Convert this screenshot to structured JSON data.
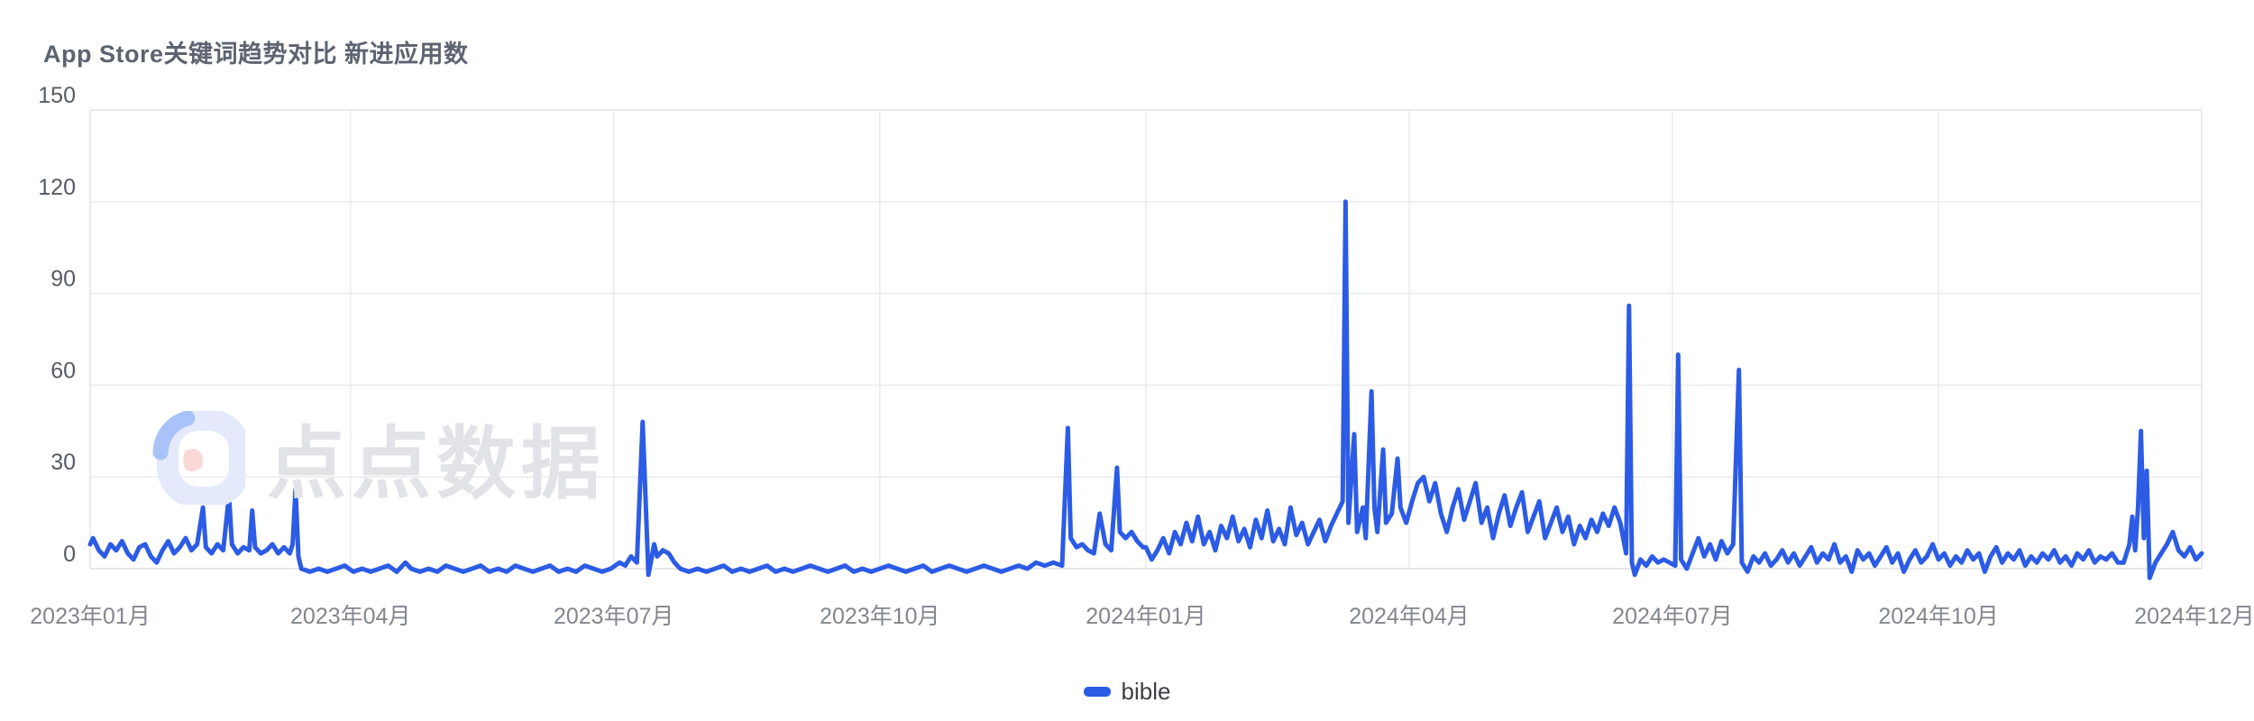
{
  "header": {
    "title": "App Store关键词趋势对比 新进应用数"
  },
  "watermark": {
    "text": "点点数据",
    "logo": "diandian-logo"
  },
  "legend": {
    "items": [
      {
        "label": "bible",
        "color": "#2c5ce5"
      }
    ]
  },
  "colors": {
    "line": "#2c5ce5",
    "grid": "#e9ebee",
    "plot_border": "#e3e5ea",
    "y_label": "#565b63",
    "x_label": "#82868e",
    "title": "#5d6370",
    "watermark_text": "#e2e3e6",
    "logo_ring": "#e4eafb",
    "logo_accent": "#a9c2f7",
    "logo_dot": "#f9d8d6"
  },
  "chart_data": {
    "type": "line",
    "title": "App Store关键词趋势对比 新进应用数",
    "legend_position": "bottom-center",
    "grid": true,
    "series_name": "bible",
    "x_axis": {
      "start_date": "2023-01-01",
      "end_date": "2024-12-31",
      "total_days": 730,
      "ticks": [
        {
          "label": "2023年01月",
          "day": 0
        },
        {
          "label": "2023年04月",
          "day": 90
        },
        {
          "label": "2023年07月",
          "day": 181
        },
        {
          "label": "2023年10月",
          "day": 273
        },
        {
          "label": "2024年01月",
          "day": 365
        },
        {
          "label": "2024年04月",
          "day": 456
        },
        {
          "label": "2024年07月",
          "day": 547
        },
        {
          "label": "2024年10月",
          "day": 639
        },
        {
          "label": "2024年12月",
          "day": 730
        }
      ]
    },
    "y_axis": {
      "min": 0,
      "max": 150,
      "tick_values": [
        0,
        30,
        60,
        90,
        120,
        150
      ],
      "tick_labels": [
        "0",
        "30",
        "60",
        "90",
        "120",
        "150"
      ]
    },
    "notable_peaks": [
      {
        "date": "2023-03-13",
        "value": 26
      },
      {
        "date": "2023-07-11",
        "value": 48
      },
      {
        "date": "2023-12-05",
        "value": 46
      },
      {
        "date": "2023-12-22",
        "value": 33
      },
      {
        "date": "2024-03-10",
        "value": 120
      },
      {
        "date": "2024-03-19",
        "value": 58
      },
      {
        "date": "2024-06-16",
        "value": 86
      },
      {
        "date": "2024-07-03",
        "value": 70
      },
      {
        "date": "2024-07-23",
        "value": 65
      },
      {
        "date": "2024-12-09",
        "value": 45
      },
      {
        "date": "2024-12-11",
        "value": 32
      }
    ],
    "points": [
      [
        0,
        8
      ],
      [
        1,
        10
      ],
      [
        3,
        6
      ],
      [
        5,
        4
      ],
      [
        7,
        8
      ],
      [
        9,
        6
      ],
      [
        11,
        9
      ],
      [
        13,
        5
      ],
      [
        15,
        3
      ],
      [
        17,
        7
      ],
      [
        19,
        8
      ],
      [
        21,
        4
      ],
      [
        23,
        2
      ],
      [
        25,
        6
      ],
      [
        27,
        9
      ],
      [
        29,
        5
      ],
      [
        31,
        7
      ],
      [
        33,
        10
      ],
      [
        35,
        6
      ],
      [
        37,
        8
      ],
      [
        39,
        20
      ],
      [
        40,
        7
      ],
      [
        42,
        5
      ],
      [
        44,
        8
      ],
      [
        46,
        6
      ],
      [
        48,
        24
      ],
      [
        49,
        8
      ],
      [
        51,
        5
      ],
      [
        53,
        7
      ],
      [
        55,
        6
      ],
      [
        56,
        19
      ],
      [
        57,
        7
      ],
      [
        59,
        5
      ],
      [
        61,
        6
      ],
      [
        63,
        8
      ],
      [
        65,
        5
      ],
      [
        67,
        7
      ],
      [
        69,
        5
      ],
      [
        70,
        8
      ],
      [
        71,
        26
      ],
      [
        72,
        4
      ],
      [
        73,
        0
      ],
      [
        76,
        -1
      ],
      [
        79,
        0
      ],
      [
        82,
        -1
      ],
      [
        85,
        0
      ],
      [
        88,
        1
      ],
      [
        91,
        -1
      ],
      [
        94,
        0
      ],
      [
        97,
        -1
      ],
      [
        100,
        0
      ],
      [
        103,
        1
      ],
      [
        106,
        -1
      ],
      [
        109,
        2
      ],
      [
        111,
        0
      ],
      [
        114,
        -1
      ],
      [
        117,
        0
      ],
      [
        120,
        -1
      ],
      [
        123,
        1
      ],
      [
        126,
        0
      ],
      [
        129,
        -1
      ],
      [
        132,
        0
      ],
      [
        135,
        1
      ],
      [
        138,
        -1
      ],
      [
        141,
        0
      ],
      [
        144,
        -1
      ],
      [
        147,
        1
      ],
      [
        150,
        0
      ],
      [
        153,
        -1
      ],
      [
        156,
        0
      ],
      [
        159,
        1
      ],
      [
        162,
        -1
      ],
      [
        165,
        0
      ],
      [
        168,
        -1
      ],
      [
        171,
        1
      ],
      [
        174,
        0
      ],
      [
        177,
        -1
      ],
      [
        180,
        0
      ],
      [
        183,
        2
      ],
      [
        185,
        1
      ],
      [
        187,
        4
      ],
      [
        189,
        2
      ],
      [
        191,
        48
      ],
      [
        193,
        -2
      ],
      [
        195,
        8
      ],
      [
        196,
        4
      ],
      [
        198,
        6
      ],
      [
        200,
        5
      ],
      [
        202,
        2
      ],
      [
        204,
        0
      ],
      [
        207,
        -1
      ],
      [
        210,
        0
      ],
      [
        213,
        -1
      ],
      [
        216,
        0
      ],
      [
        219,
        1
      ],
      [
        222,
        -1
      ],
      [
        225,
        0
      ],
      [
        228,
        -1
      ],
      [
        231,
        0
      ],
      [
        234,
        1
      ],
      [
        237,
        -1
      ],
      [
        240,
        0
      ],
      [
        243,
        -1
      ],
      [
        246,
        0
      ],
      [
        249,
        1
      ],
      [
        252,
        0
      ],
      [
        255,
        -1
      ],
      [
        258,
        0
      ],
      [
        261,
        1
      ],
      [
        264,
        -1
      ],
      [
        267,
        0
      ],
      [
        270,
        -1
      ],
      [
        273,
        0
      ],
      [
        276,
        1
      ],
      [
        279,
        0
      ],
      [
        282,
        -1
      ],
      [
        285,
        0
      ],
      [
        288,
        1
      ],
      [
        291,
        -1
      ],
      [
        294,
        0
      ],
      [
        297,
        1
      ],
      [
        300,
        0
      ],
      [
        303,
        -1
      ],
      [
        306,
        0
      ],
      [
        309,
        1
      ],
      [
        312,
        0
      ],
      [
        315,
        -1
      ],
      [
        318,
        0
      ],
      [
        321,
        1
      ],
      [
        324,
        0
      ],
      [
        327,
        2
      ],
      [
        330,
        1
      ],
      [
        333,
        2
      ],
      [
        336,
        1
      ],
      [
        338,
        46
      ],
      [
        339,
        10
      ],
      [
        341,
        7
      ],
      [
        343,
        8
      ],
      [
        345,
        6
      ],
      [
        347,
        5
      ],
      [
        349,
        18
      ],
      [
        351,
        8
      ],
      [
        353,
        6
      ],
      [
        355,
        33
      ],
      [
        356,
        12
      ],
      [
        358,
        10
      ],
      [
        360,
        12
      ],
      [
        362,
        9
      ],
      [
        364,
        7
      ],
      [
        365,
        7
      ],
      [
        367,
        3
      ],
      [
        369,
        6
      ],
      [
        371,
        10
      ],
      [
        373,
        5
      ],
      [
        375,
        12
      ],
      [
        377,
        8
      ],
      [
        379,
        15
      ],
      [
        381,
        9
      ],
      [
        383,
        17
      ],
      [
        385,
        8
      ],
      [
        387,
        12
      ],
      [
        389,
        6
      ],
      [
        391,
        14
      ],
      [
        393,
        10
      ],
      [
        395,
        17
      ],
      [
        397,
        9
      ],
      [
        399,
        13
      ],
      [
        401,
        7
      ],
      [
        403,
        16
      ],
      [
        405,
        10
      ],
      [
        407,
        19
      ],
      [
        409,
        9
      ],
      [
        411,
        13
      ],
      [
        413,
        8
      ],
      [
        415,
        20
      ],
      [
        417,
        11
      ],
      [
        419,
        15
      ],
      [
        421,
        8
      ],
      [
        423,
        12
      ],
      [
        425,
        16
      ],
      [
        427,
        9
      ],
      [
        429,
        14
      ],
      [
        431,
        18
      ],
      [
        433,
        22
      ],
      [
        434,
        120
      ],
      [
        435,
        15
      ],
      [
        437,
        44
      ],
      [
        438,
        12
      ],
      [
        440,
        20
      ],
      [
        441,
        10
      ],
      [
        443,
        58
      ],
      [
        444,
        20
      ],
      [
        445,
        12
      ],
      [
        447,
        39
      ],
      [
        448,
        15
      ],
      [
        450,
        18
      ],
      [
        452,
        36
      ],
      [
        453,
        20
      ],
      [
        455,
        15
      ],
      [
        457,
        22
      ],
      [
        459,
        28
      ],
      [
        461,
        30
      ],
      [
        463,
        22
      ],
      [
        465,
        28
      ],
      [
        467,
        18
      ],
      [
        469,
        12
      ],
      [
        471,
        20
      ],
      [
        473,
        26
      ],
      [
        475,
        16
      ],
      [
        477,
        22
      ],
      [
        479,
        28
      ],
      [
        481,
        15
      ],
      [
        483,
        20
      ],
      [
        485,
        10
      ],
      [
        487,
        18
      ],
      [
        489,
        24
      ],
      [
        491,
        14
      ],
      [
        493,
        20
      ],
      [
        495,
        25
      ],
      [
        497,
        12
      ],
      [
        499,
        17
      ],
      [
        501,
        22
      ],
      [
        503,
        10
      ],
      [
        505,
        15
      ],
      [
        507,
        20
      ],
      [
        509,
        12
      ],
      [
        511,
        17
      ],
      [
        513,
        8
      ],
      [
        515,
        14
      ],
      [
        517,
        10
      ],
      [
        519,
        16
      ],
      [
        521,
        12
      ],
      [
        523,
        18
      ],
      [
        525,
        14
      ],
      [
        527,
        20
      ],
      [
        529,
        15
      ],
      [
        531,
        5
      ],
      [
        532,
        86
      ],
      [
        533,
        2
      ],
      [
        534,
        -2
      ],
      [
        536,
        3
      ],
      [
        538,
        1
      ],
      [
        540,
        4
      ],
      [
        542,
        2
      ],
      [
        544,
        3
      ],
      [
        546,
        2
      ],
      [
        548,
        1
      ],
      [
        549,
        70
      ],
      [
        550,
        3
      ],
      [
        552,
        0
      ],
      [
        554,
        5
      ],
      [
        556,
        10
      ],
      [
        558,
        4
      ],
      [
        560,
        8
      ],
      [
        562,
        3
      ],
      [
        564,
        9
      ],
      [
        566,
        5
      ],
      [
        568,
        8
      ],
      [
        570,
        65
      ],
      [
        571,
        2
      ],
      [
        573,
        -1
      ],
      [
        575,
        4
      ],
      [
        577,
        2
      ],
      [
        579,
        5
      ],
      [
        581,
        1
      ],
      [
        583,
        3
      ],
      [
        585,
        6
      ],
      [
        587,
        2
      ],
      [
        589,
        5
      ],
      [
        591,
        1
      ],
      [
        593,
        4
      ],
      [
        595,
        7
      ],
      [
        597,
        2
      ],
      [
        599,
        5
      ],
      [
        601,
        3
      ],
      [
        603,
        8
      ],
      [
        605,
        2
      ],
      [
        607,
        4
      ],
      [
        609,
        -1
      ],
      [
        611,
        6
      ],
      [
        613,
        3
      ],
      [
        615,
        5
      ],
      [
        617,
        1
      ],
      [
        619,
        4
      ],
      [
        621,
        7
      ],
      [
        623,
        2
      ],
      [
        625,
        5
      ],
      [
        627,
        -1
      ],
      [
        629,
        3
      ],
      [
        631,
        6
      ],
      [
        633,
        2
      ],
      [
        635,
        4
      ],
      [
        637,
        8
      ],
      [
        639,
        3
      ],
      [
        641,
        5
      ],
      [
        643,
        1
      ],
      [
        645,
        4
      ],
      [
        647,
        2
      ],
      [
        649,
        6
      ],
      [
        651,
        3
      ],
      [
        653,
        5
      ],
      [
        655,
        -1
      ],
      [
        657,
        4
      ],
      [
        659,
        7
      ],
      [
        661,
        2
      ],
      [
        663,
        5
      ],
      [
        665,
        3
      ],
      [
        667,
        6
      ],
      [
        669,
        1
      ],
      [
        671,
        4
      ],
      [
        673,
        2
      ],
      [
        675,
        5
      ],
      [
        677,
        3
      ],
      [
        679,
        6
      ],
      [
        681,
        2
      ],
      [
        683,
        4
      ],
      [
        685,
        1
      ],
      [
        687,
        5
      ],
      [
        689,
        3
      ],
      [
        691,
        6
      ],
      [
        693,
        2
      ],
      [
        695,
        4
      ],
      [
        697,
        3
      ],
      [
        699,
        5
      ],
      [
        701,
        2
      ],
      [
        703,
        2
      ],
      [
        705,
        8
      ],
      [
        706,
        17
      ],
      [
        707,
        6
      ],
      [
        708,
        20
      ],
      [
        709,
        45
      ],
      [
        710,
        10
      ],
      [
        711,
        32
      ],
      [
        712,
        -3
      ],
      [
        714,
        2
      ],
      [
        716,
        5
      ],
      [
        718,
        8
      ],
      [
        720,
        12
      ],
      [
        722,
        6
      ],
      [
        724,
        4
      ],
      [
        726,
        7
      ],
      [
        728,
        3
      ],
      [
        730,
        5
      ]
    ]
  }
}
